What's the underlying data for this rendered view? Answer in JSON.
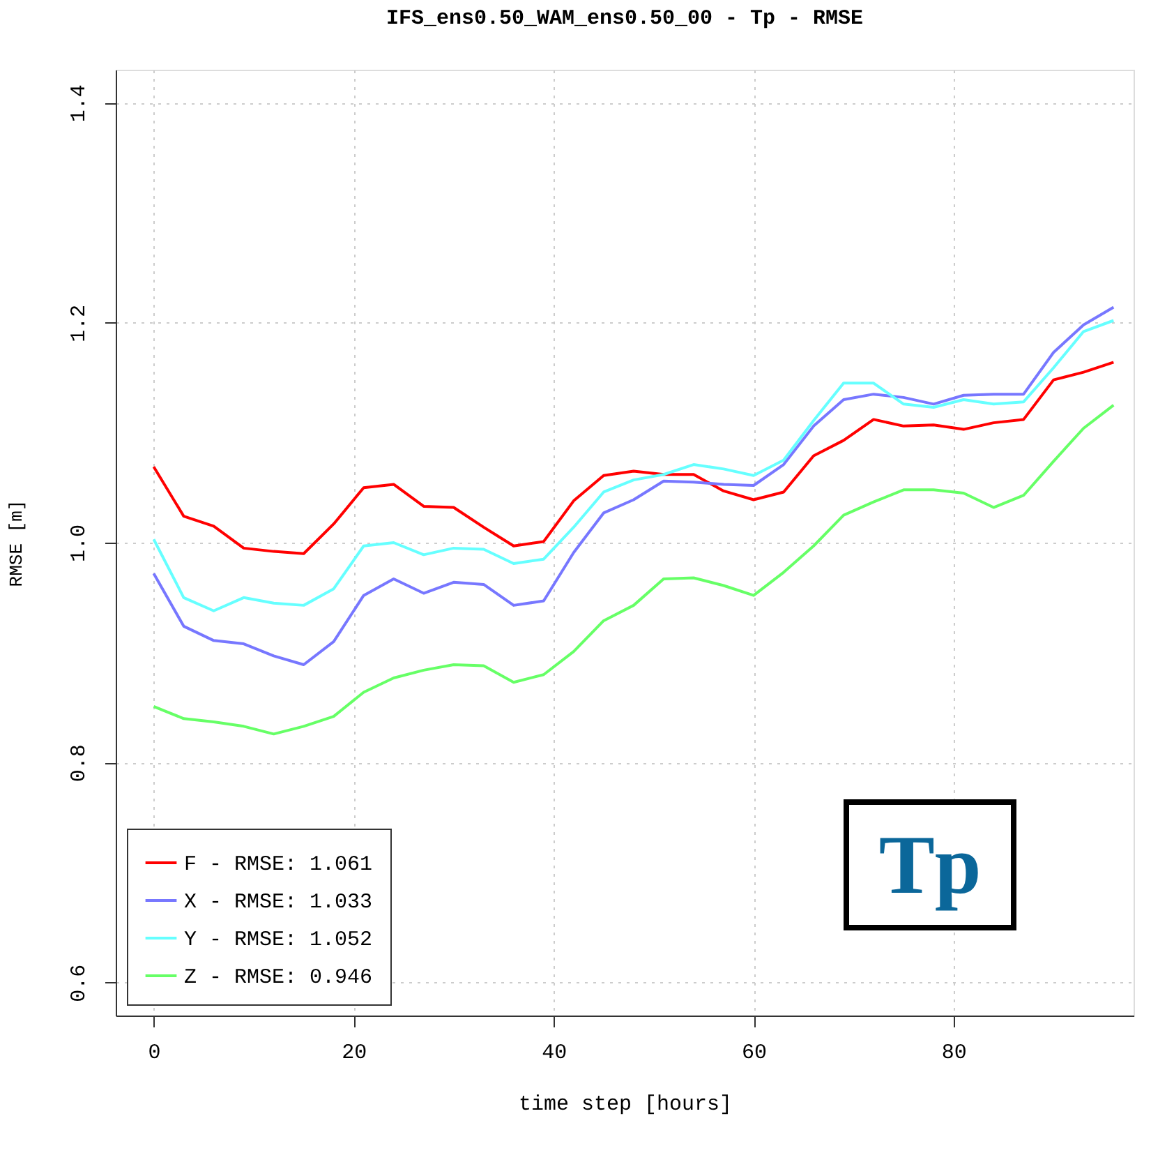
{
  "chart_data": {
    "type": "line",
    "title": "IFS_ens0.50_WAM_ens0.50_00 - Tp  -  RMSE",
    "xlabel": "time step [hours]",
    "ylabel": "RMSE [m]",
    "x": [
      0,
      3,
      6,
      9,
      12,
      15,
      18,
      21,
      24,
      27,
      30,
      33,
      36,
      39,
      42,
      45,
      48,
      51,
      54,
      57,
      60,
      63,
      66,
      69,
      72,
      75,
      78,
      81,
      84,
      87,
      90,
      93,
      96
    ],
    "series": [
      {
        "name": "F - RMSE: 1.061",
        "color": "#ff0000",
        "values": [
          1.069,
          1.024,
          1.015,
          0.995,
          0.992,
          0.99,
          1.017,
          1.05,
          1.053,
          1.033,
          1.032,
          1.014,
          0.997,
          1.001,
          1.038,
          1.061,
          1.065,
          1.062,
          1.062,
          1.047,
          1.039,
          1.046,
          1.079,
          1.093,
          1.112,
          1.106,
          1.107,
          1.103,
          1.109,
          1.112,
          1.148,
          1.155,
          1.164
        ]
      },
      {
        "name": "X - RMSE: 1.033",
        "color": "#7777ff",
        "values": [
          0.972,
          0.924,
          0.911,
          0.908,
          0.897,
          0.889,
          0.91,
          0.952,
          0.967,
          0.954,
          0.964,
          0.962,
          0.943,
          0.947,
          0.991,
          1.027,
          1.039,
          1.056,
          1.055,
          1.053,
          1.052,
          1.071,
          1.106,
          1.13,
          1.135,
          1.132,
          1.126,
          1.134,
          1.135,
          1.135,
          1.173,
          1.198,
          1.214
        ]
      },
      {
        "name": "Y - RMSE: 1.052",
        "color": "#66ffff",
        "values": [
          1.003,
          0.95,
          0.938,
          0.95,
          0.945,
          0.943,
          0.958,
          0.997,
          1.0,
          0.989,
          0.995,
          0.994,
          0.981,
          0.985,
          1.014,
          1.046,
          1.057,
          1.062,
          1.071,
          1.067,
          1.061,
          1.075,
          1.111,
          1.145,
          1.145,
          1.126,
          1.123,
          1.13,
          1.126,
          1.128,
          1.159,
          1.192,
          1.202
        ]
      },
      {
        "name": "Z - RMSE: 0.946",
        "color": "#66ff66",
        "values": [
          0.851,
          0.84,
          0.837,
          0.833,
          0.826,
          0.833,
          0.842,
          0.864,
          0.877,
          0.884,
          0.889,
          0.888,
          0.873,
          0.88,
          0.901,
          0.929,
          0.943,
          0.967,
          0.968,
          0.961,
          0.952,
          0.973,
          0.997,
          1.025,
          1.037,
          1.048,
          1.048,
          1.045,
          1.032,
          1.043,
          1.074,
          1.104,
          1.125
        ]
      }
    ],
    "xlim": [
      -3.8,
      98
    ],
    "ylim": [
      0.57,
      1.43
    ],
    "xticks": [
      0,
      20,
      40,
      60,
      80
    ],
    "yticks": [
      0.6,
      0.8,
      {
        "value": 1.0,
        "label": "1.0"
      },
      1.2,
      1.4
    ],
    "grid": true,
    "legend": "bottom left",
    "marker": "none",
    "line_style": "solid",
    "annotations": [
      "Tp"
    ]
  }
}
